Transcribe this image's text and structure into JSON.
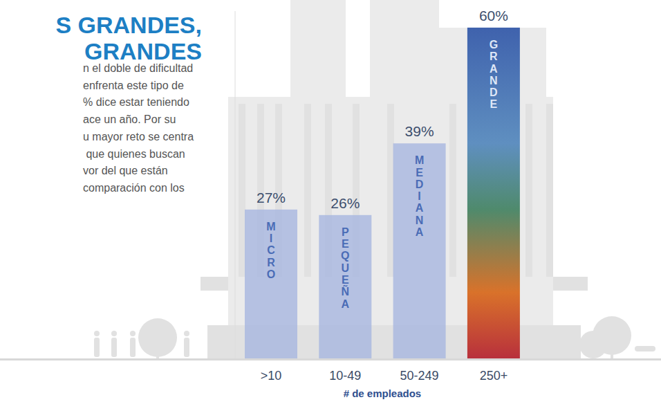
{
  "chart_data": {
    "type": "bar",
    "title": "S GRANDES,",
    "subtitle": "GRANDES",
    "annotation": [
      "n el doble de dificultad",
      "enfrenta este tipo de",
      "% dice estar teniendo",
      "ace un año. Por su",
      "u mayor reto se centra",
      " que quienes buscan",
      "vor del que están",
      "comparación con los"
    ],
    "x_label": "# de empleados",
    "categories": [
      ">10",
      "10-49",
      "50-249",
      "250+"
    ],
    "bar_labels": [
      "MICRO",
      "PEQUEÑA",
      "MEDIANA",
      "GRANDE"
    ],
    "values": [
      27,
      26,
      39,
      60
    ],
    "value_labels": [
      "27%",
      "26%",
      "39%",
      "60%"
    ],
    "colors": [
      "#a3b3df",
      "#a3b3df",
      "#a3b3df",
      "#3f62ad"
    ],
    "ylim": [
      0,
      63
    ],
    "grid": false,
    "data_labels": true,
    "tick_labels": "x"
  }
}
